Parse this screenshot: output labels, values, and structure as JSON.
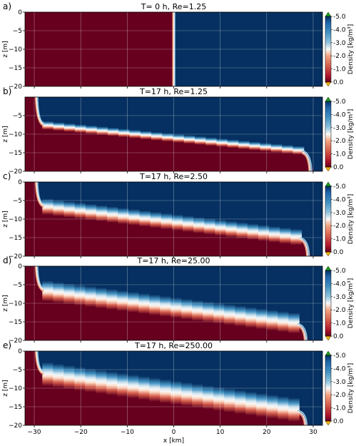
{
  "colors": {
    "dense": "#67001f",
    "light": "#053061",
    "under_arrow": "#f2b400",
    "over_arrow": "#1aa01a",
    "grid": "#ffffff"
  },
  "chart_data": [
    {
      "type": "heatmap",
      "letter": "a)",
      "title": "T= 0 h, Re=1.25",
      "ylabel": "z [m]",
      "xlim": [
        -32,
        32
      ],
      "ylim": [
        -20,
        0
      ],
      "yticks": [
        "0",
        "−5",
        "−10",
        "−15",
        "−20"
      ],
      "interface": {
        "kind": "vertical",
        "x": 0
      }
    },
    {
      "type": "heatmap",
      "letter": "b)",
      "title": "T=17 h, Re=1.25",
      "ylabel": "z [m]",
      "xlim": [
        -32,
        32
      ],
      "ylim": [
        -20,
        0
      ],
      "yticks": [
        "−5",
        "−10",
        "−15",
        "−20"
      ],
      "interface": {
        "kind": "tilted",
        "left_front_x": -29.5,
        "right_front_x": 29.5,
        "z_at_left": -7.5,
        "z_at_right": -14.5,
        "thickness_m": 1.0
      }
    },
    {
      "type": "heatmap",
      "letter": "c)",
      "title": "T=17 h, Re=2.50",
      "ylabel": "z [m]",
      "xlim": [
        -32,
        32
      ],
      "ylim": [
        -20,
        0
      ],
      "yticks": [
        "0",
        "−5",
        "−10",
        "−15",
        "−20"
      ],
      "interface": {
        "kind": "tilted",
        "left_front_x": -29.5,
        "right_front_x": 29.0,
        "z_at_left": -6.5,
        "z_at_right": -15.0,
        "thickness_m": 2.0
      }
    },
    {
      "type": "heatmap",
      "letter": "d)",
      "title": "T=17 h, Re=25.00",
      "ylabel": "z [m]",
      "xlim": [
        -32,
        32
      ],
      "ylim": [
        -20,
        0
      ],
      "yticks": [
        "0",
        "−5",
        "−10",
        "−15",
        "−20"
      ],
      "interface": {
        "kind": "tilted",
        "left_front_x": -29.5,
        "right_front_x": 28.5,
        "z_at_left": -6.5,
        "z_at_right": -15.5,
        "thickness_m": 2.6
      }
    },
    {
      "type": "heatmap",
      "letter": "e)",
      "title": "T=17 h, Re=250.00",
      "ylabel": "z [m]",
      "xlim": [
        -32,
        32
      ],
      "ylim": [
        -20,
        0
      ],
      "yticks": [
        "0",
        "−5",
        "−10",
        "−15",
        "−20"
      ],
      "xticks": [
        "−30",
        "−20",
        "−10",
        "0",
        "10",
        "20",
        "30"
      ],
      "xlabel": "x [km]",
      "interface": {
        "kind": "tilted",
        "left_front_x": -29.5,
        "right_front_x": 28.5,
        "z_at_left": -6.0,
        "z_at_right": -16.0,
        "thickness_m": 3.0
      }
    }
  ],
  "colorbar": {
    "label": "Density [kg/m³]",
    "ticks": [
      "-5.0",
      "-4.0",
      "-3.0",
      "-2.0",
      "-1.0",
      "0.0"
    ],
    "range": [
      -5.0,
      0.0
    ],
    "extend": "both"
  }
}
